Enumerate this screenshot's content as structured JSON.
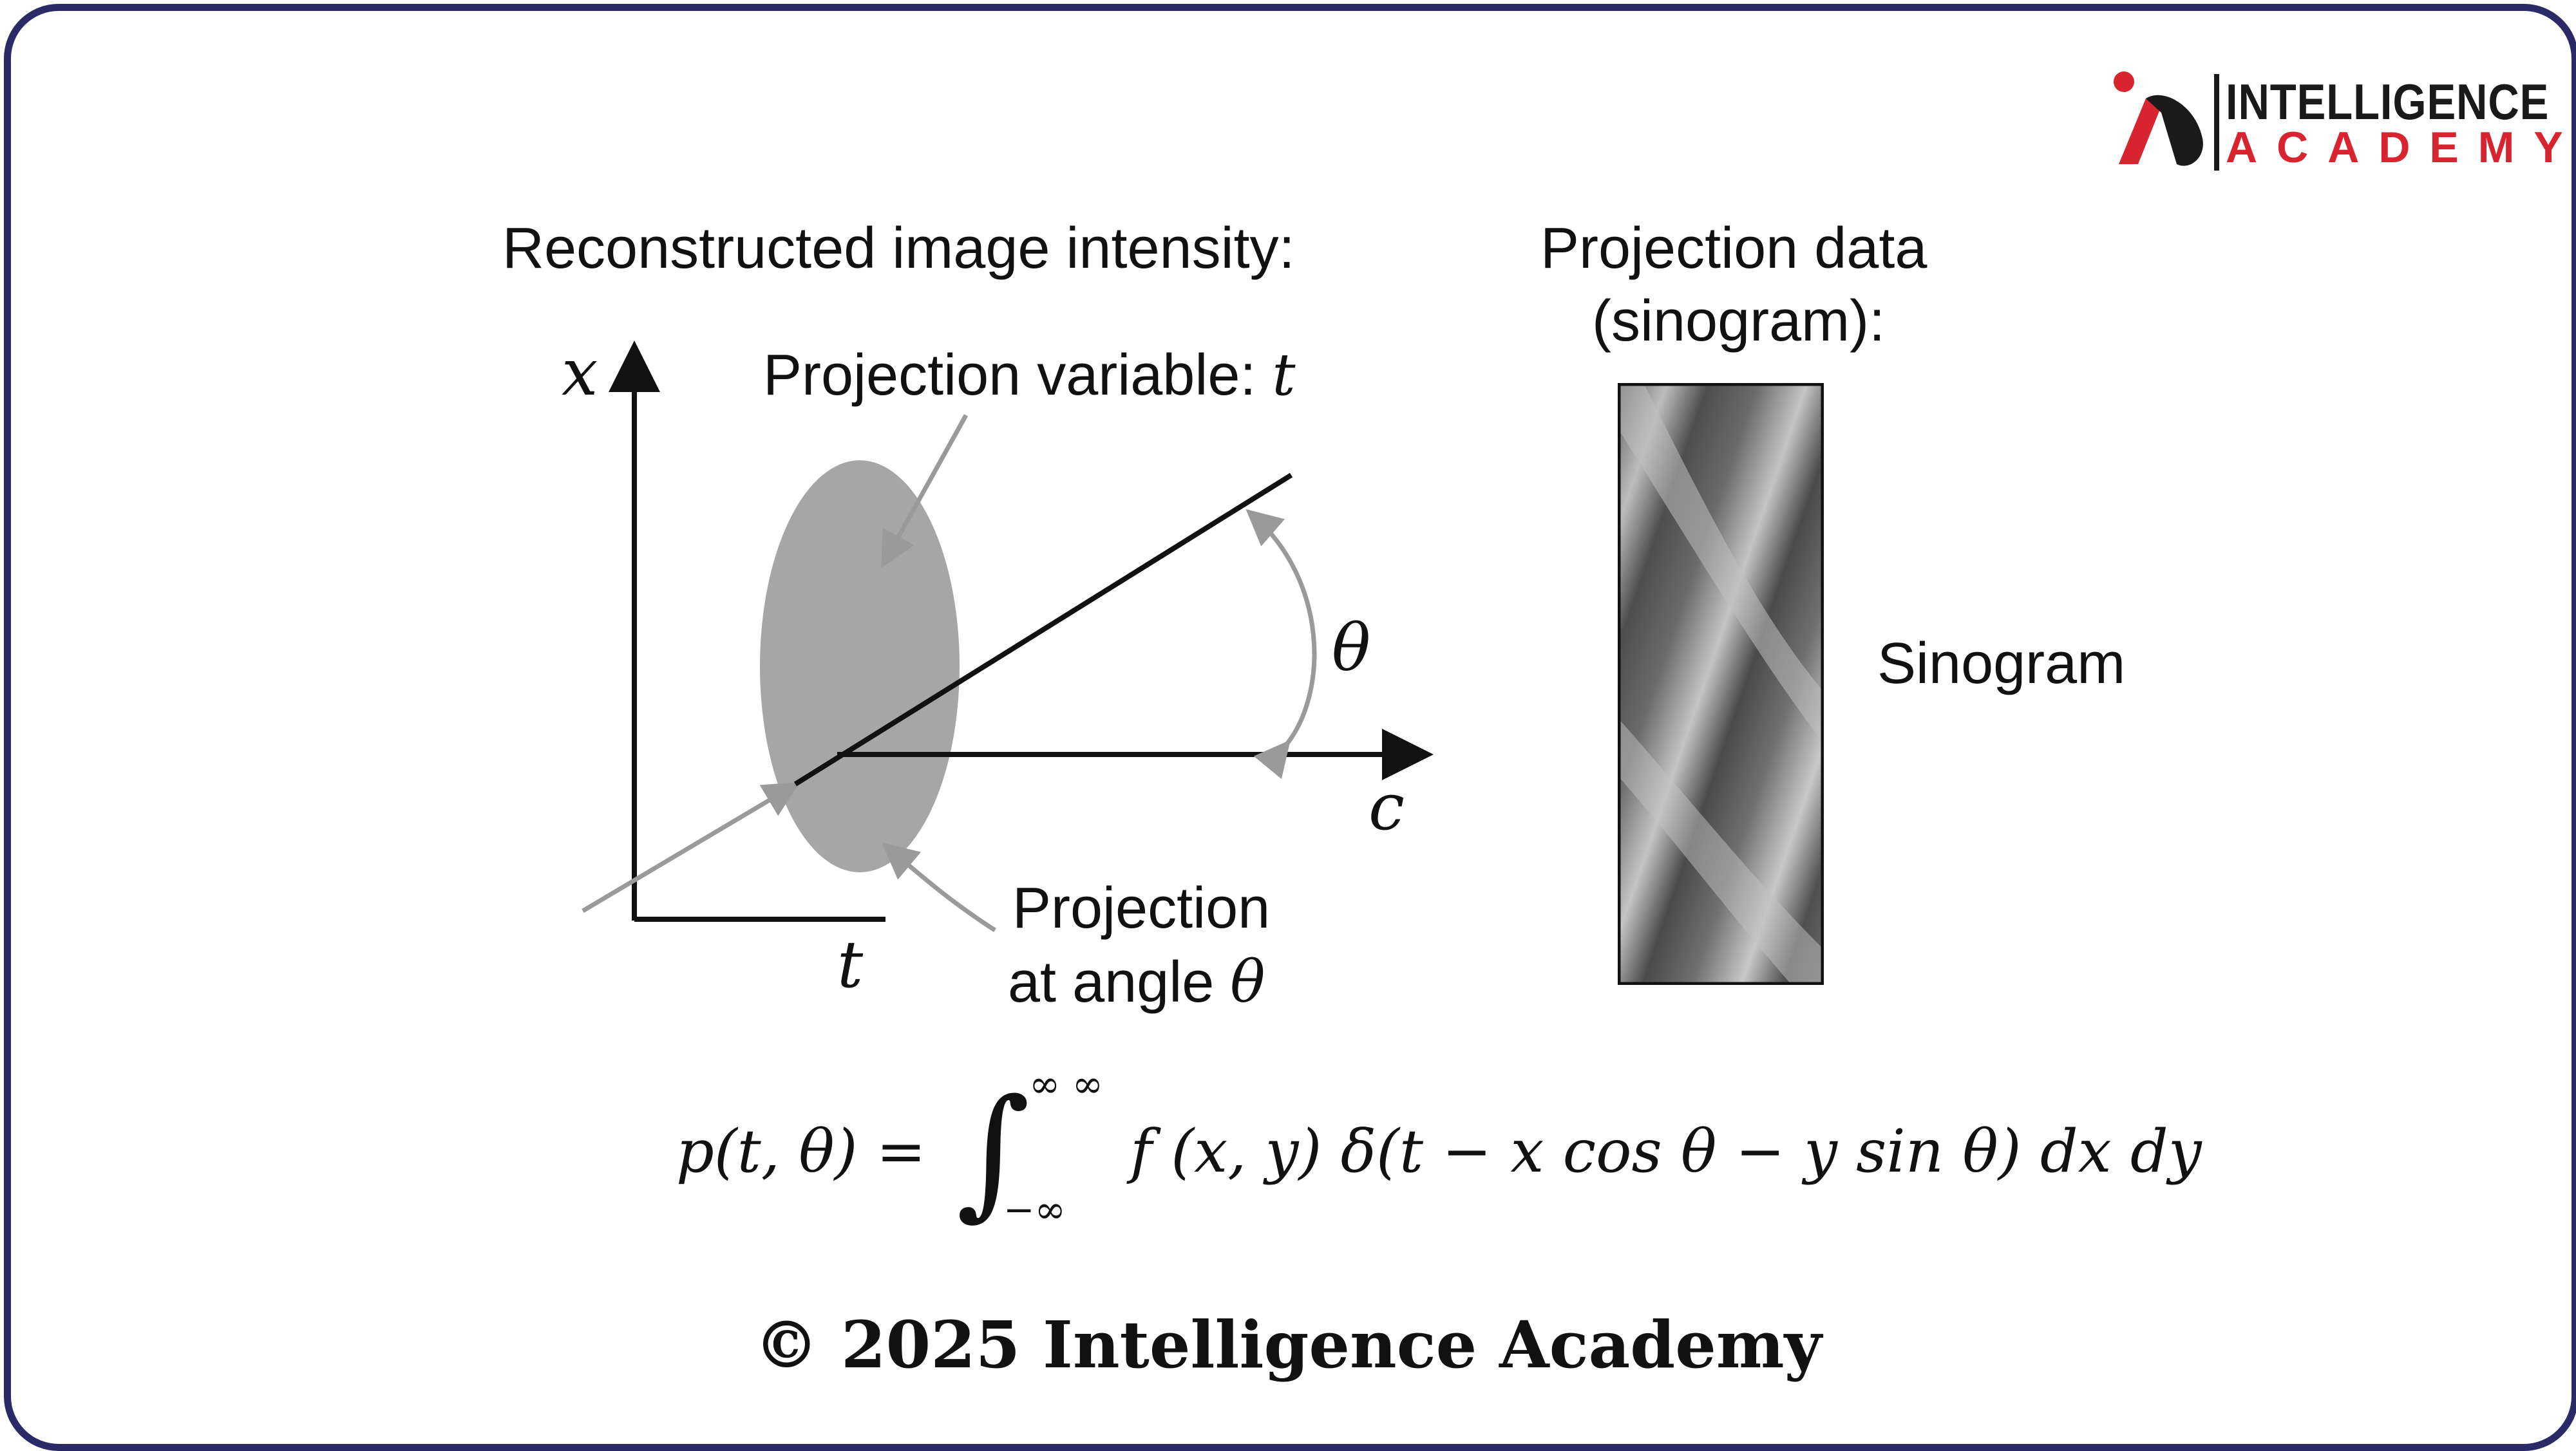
{
  "logo": {
    "line1": "INTELLIGENCE",
    "line2": "ACADEMY",
    "colors": {
      "dark": "#1a1a1a",
      "red": "#d8242e"
    }
  },
  "left_panel": {
    "title": "Reconstructed image intensity:",
    "axis_x": "x",
    "axis_t": "t",
    "axis_c": "c",
    "angle": "θ",
    "projection_variable_label": "Projection variable: ",
    "projection_variable_symbol": "t",
    "projection_label_line1": "Projection",
    "projection_label_line2": "at angle ",
    "projection_label_symbol": "θ"
  },
  "right_panel": {
    "title_line1": "Projection data",
    "title_line2": "(sinogram):",
    "side_label": "Sinogram"
  },
  "equation": {
    "lhs": "p(t, θ) =",
    "upper_limit": "∞ ∞",
    "lower_limit": "−∞",
    "integrand": "f (x, y) δ(t − x cos θ − y sin θ) dx dy"
  },
  "footer": {
    "copyright": "© 2025 Intelligence Academy"
  },
  "colors": {
    "frame": "#2a2a66",
    "ellipse": "#a6a6a6",
    "pointer": "#9a9a9a"
  }
}
